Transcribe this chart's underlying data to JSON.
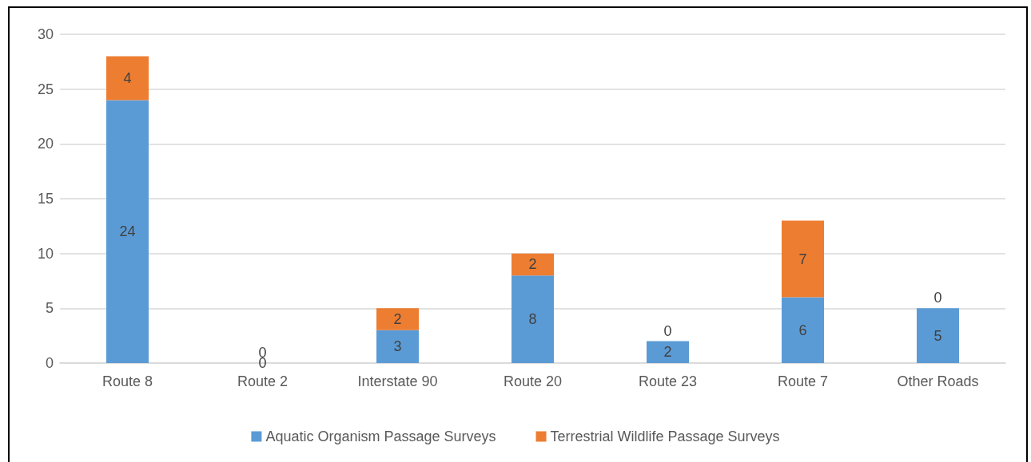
{
  "chart_data": {
    "type": "bar",
    "stacked": true,
    "categories": [
      "Route 8",
      "Route 2",
      "Interstate 90",
      "Route 20",
      "Route 23",
      "Route 7",
      "Other Roads"
    ],
    "series": [
      {
        "name": "Aquatic Organism Passage Surveys",
        "color": "#5b9bd5",
        "values": [
          24,
          0,
          3,
          8,
          2,
          6,
          5
        ]
      },
      {
        "name": "Terrestrial Wildlife Passage Surveys",
        "color": "#ed7d31",
        "values": [
          4,
          0,
          2,
          2,
          0,
          7,
          0
        ]
      }
    ],
    "ylim": [
      0,
      30
    ],
    "yticks": [
      0,
      5,
      10,
      15,
      20,
      25,
      30
    ],
    "grid": "y",
    "legend": "bottom",
    "data_labels": true
  }
}
